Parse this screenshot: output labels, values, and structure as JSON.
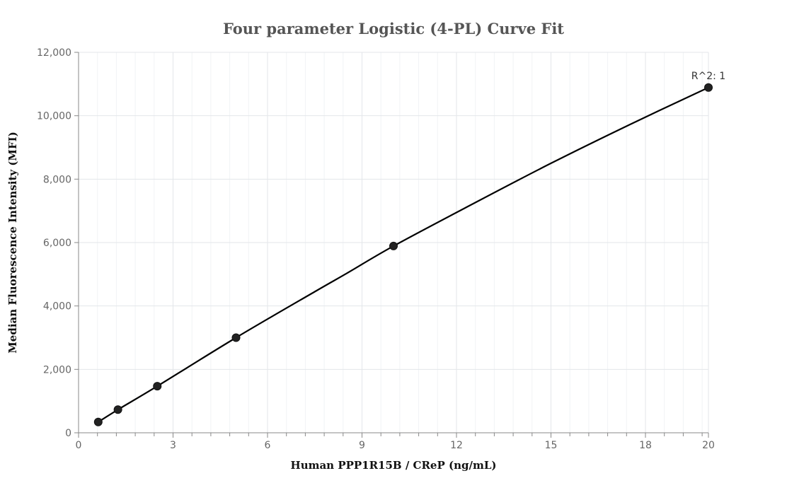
{
  "chart_data": {
    "type": "scatter",
    "title": "Four parameter Logistic (4-PL) Curve Fit",
    "xlabel": "Human PPP1R15B / CReP (ng/mL)",
    "ylabel": "Median Fluorescence Intensity (MFI)",
    "xlim": [
      0,
      20
    ],
    "ylim": [
      0,
      12000
    ],
    "x_ticks": [
      0,
      3,
      6,
      9,
      12,
      15,
      18,
      20
    ],
    "x_tick_labels": [
      "0",
      "3",
      "6",
      "9",
      "12",
      "15",
      "18",
      "20"
    ],
    "y_ticks": [
      0,
      2000,
      4000,
      6000,
      8000,
      10000,
      12000
    ],
    "y_tick_labels": [
      "0",
      "2,000",
      "4,000",
      "6,000",
      "8,000",
      "10,000",
      "12,000"
    ],
    "grid": true,
    "series": [
      {
        "type": "scatter",
        "x": [
          0.625,
          1.25,
          2.5,
          5,
          10,
          20
        ],
        "y": [
          340,
          730,
          1470,
          3000,
          5890,
          10890
        ]
      },
      {
        "type": "line",
        "x": [
          0.625,
          1.25,
          2.5,
          5,
          7.5,
          8.5,
          10,
          12.5,
          15,
          17.5,
          20
        ],
        "y": [
          340,
          730,
          1470,
          3000,
          4450,
          5020,
          5890,
          7210,
          8500,
          9720,
          10890
        ]
      }
    ],
    "annotations": [
      {
        "text": "R^2: 1",
        "x": 20,
        "y": 10890
      }
    ],
    "colors": {
      "curve": "#000000",
      "points": "#222222",
      "grid": "#e3e6ea"
    }
  }
}
